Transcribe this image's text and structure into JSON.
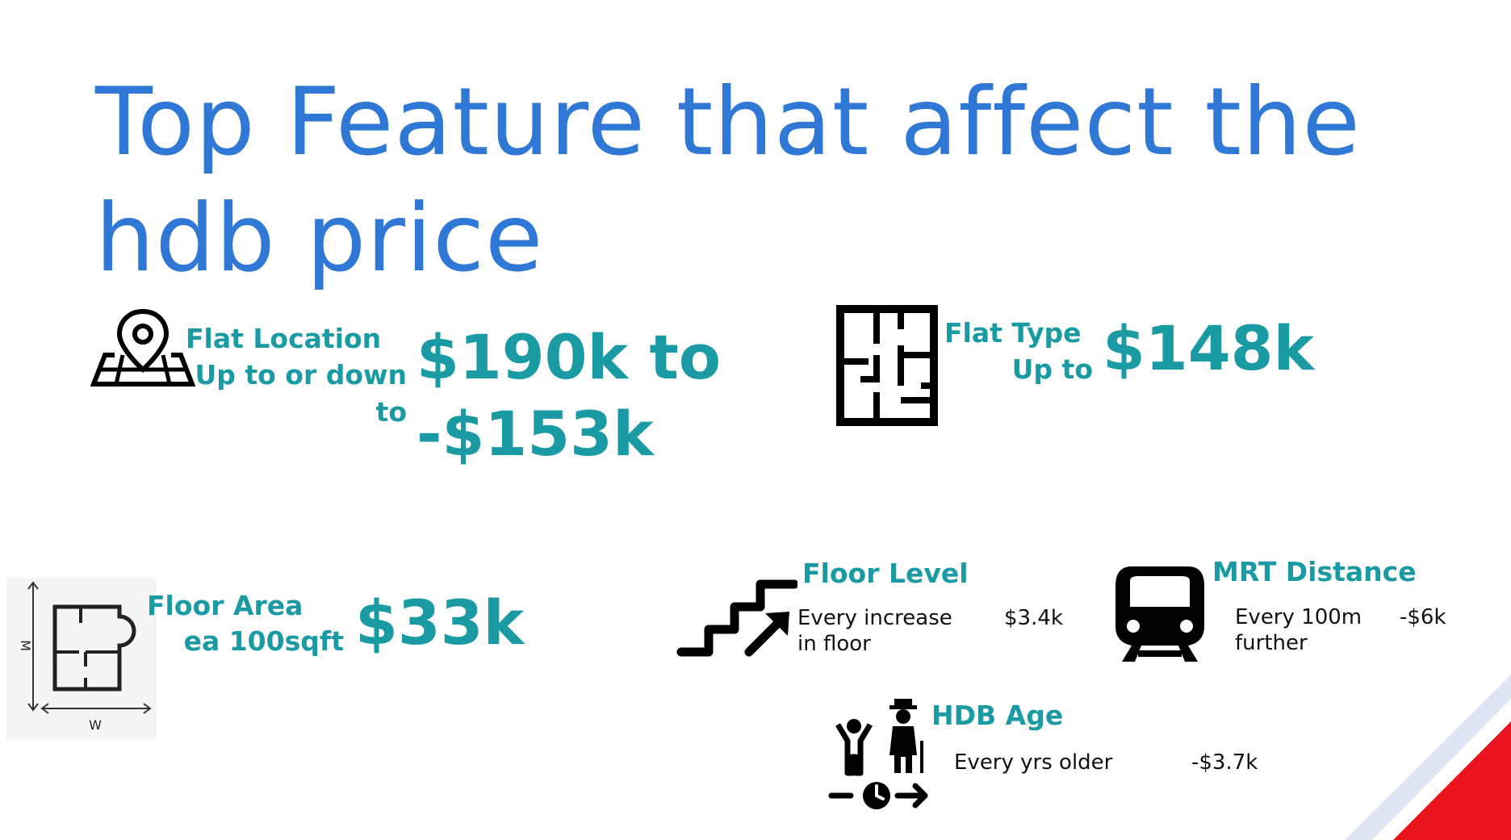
{
  "slide": {
    "title": "Top Feature that affect the hdb price"
  },
  "location": {
    "label_line1": "Flat Location",
    "label_line2": "Up to or down",
    "label_line3": "to",
    "value_line1": "$190k  to",
    "value_line2": "-$153k",
    "icon": "map-pin-icon"
  },
  "flat_type": {
    "label_line1": "Flat Type",
    "label_line2": "Up to",
    "value": "$148k",
    "icon": "floor-plan-icon"
  },
  "floor_area": {
    "label_line1": "Floor Area",
    "label_line2": "ea 100sqft",
    "value": "$33k",
    "axis_w": "W",
    "axis_m": "M",
    "icon": "floor-area-plan-icon"
  },
  "floor_level": {
    "label": "Floor Level",
    "desc_line1": "Every increase",
    "desc_line2": "in floor",
    "value": "$3.4k",
    "icon": "stairs-up-icon"
  },
  "mrt": {
    "label": "MRT Distance",
    "desc_line1": "Every 100m",
    "desc_line2": "further",
    "value": "-$6k",
    "icon": "train-icon"
  },
  "hdb_age": {
    "label": "HDB Age",
    "desc": "Every  yrs older",
    "value": "-$3.7k",
    "icon": "aging-people-icon"
  },
  "colors": {
    "title": "#2f78d6",
    "accent": "#1a9ba4",
    "corner_red": "#e8161c"
  }
}
